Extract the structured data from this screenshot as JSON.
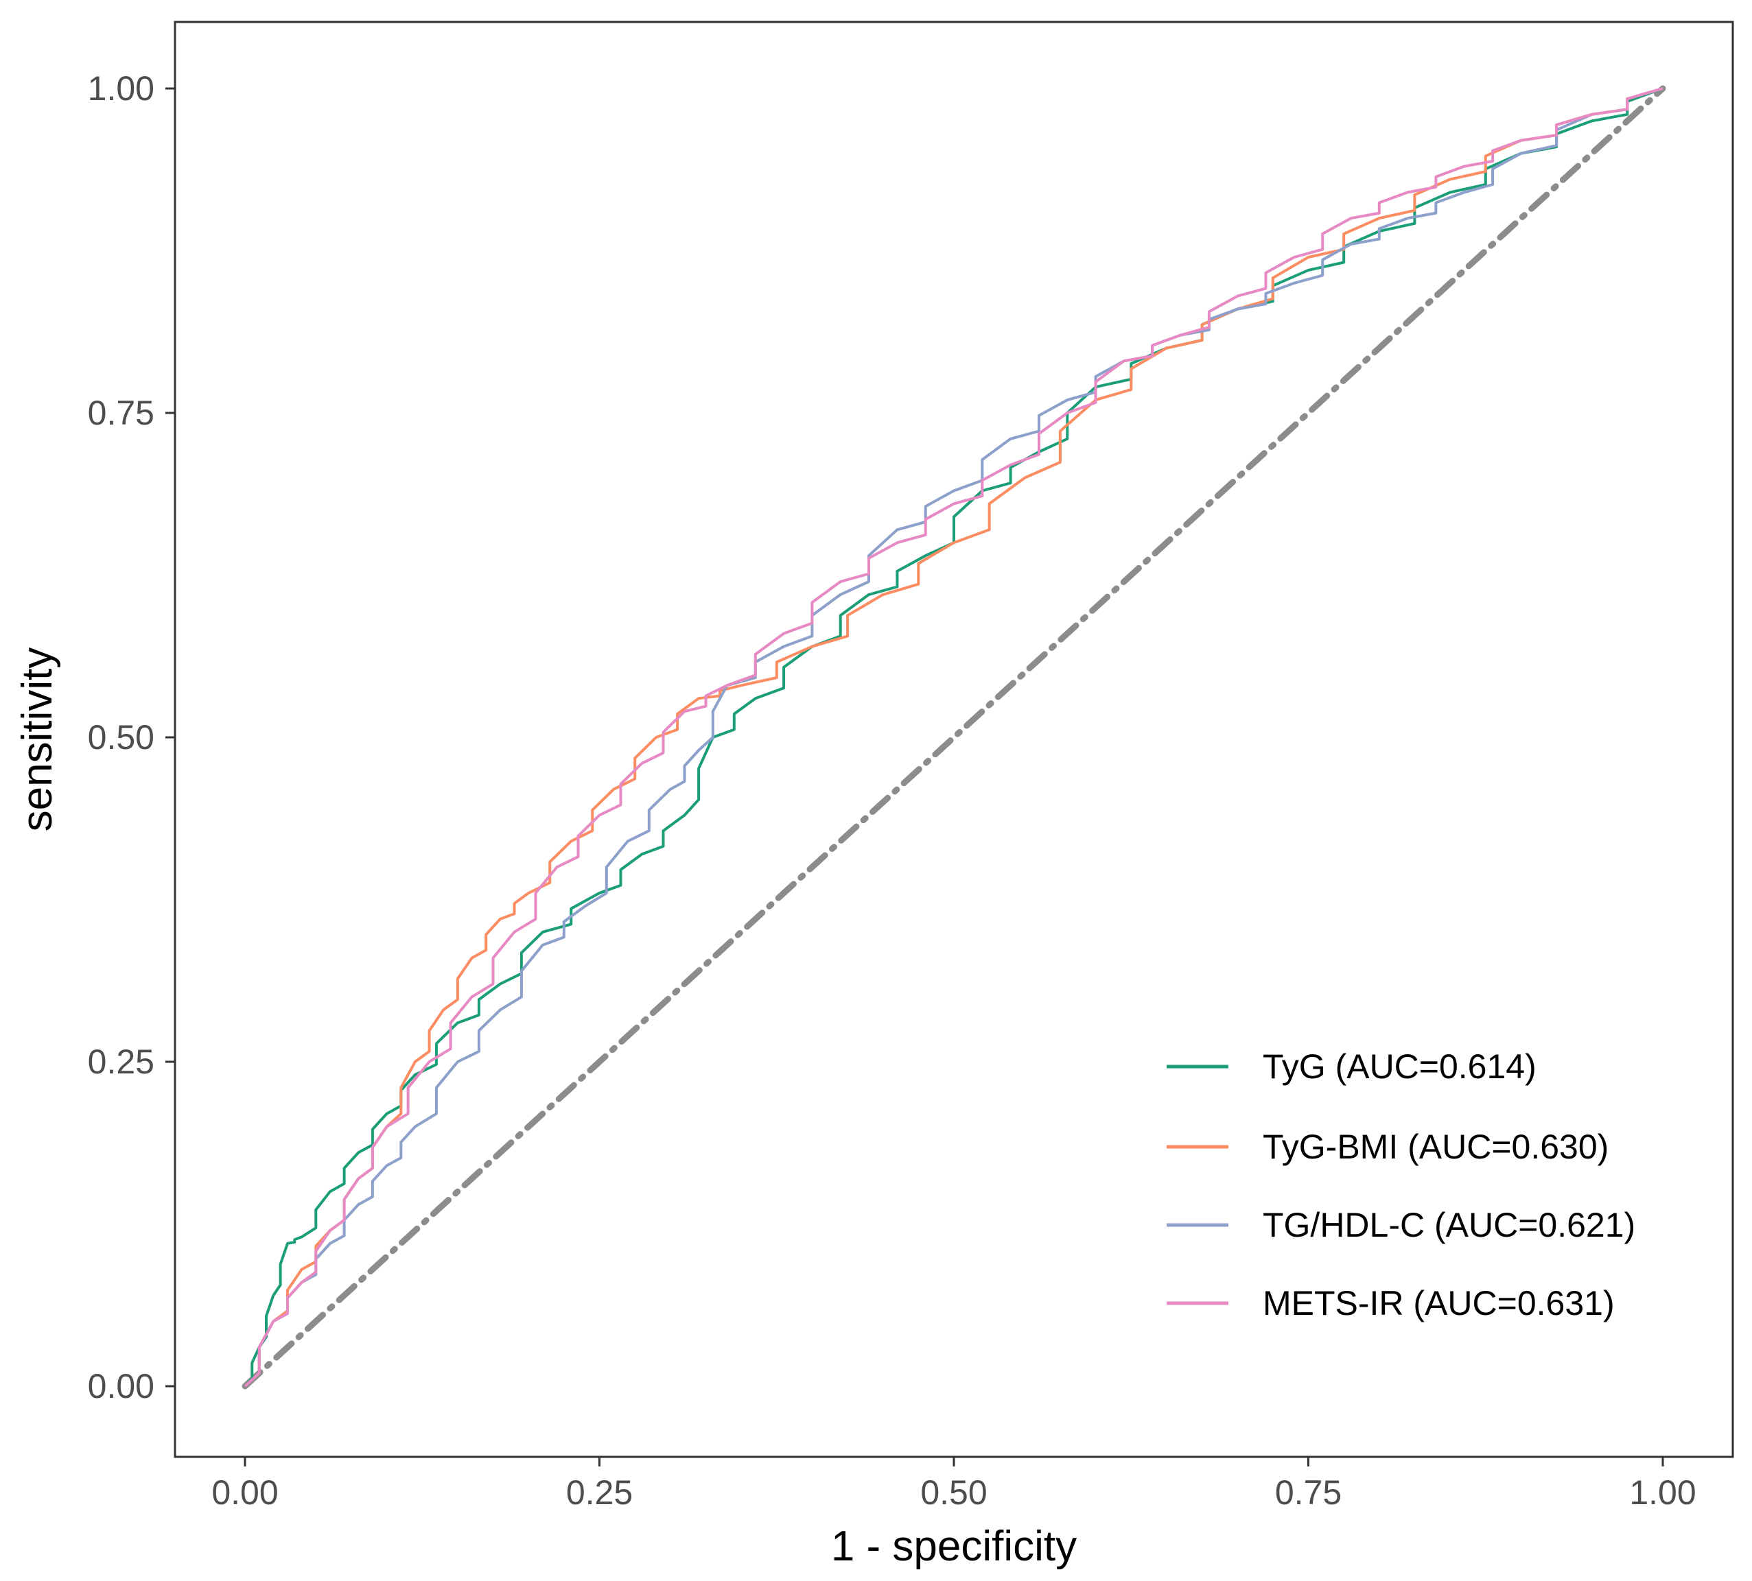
{
  "chart_data": {
    "type": "line",
    "title": "",
    "xlabel": "1 - specificity",
    "ylabel": "sensitivity",
    "xlim": [
      0,
      1
    ],
    "ylim": [
      0,
      1
    ],
    "x_ticks": [
      "0.00",
      "0.25",
      "0.50",
      "0.75",
      "1.00"
    ],
    "y_ticks": [
      "0.00",
      "0.25",
      "0.50",
      "0.75",
      "1.00"
    ],
    "grid": false,
    "legend_position": "bottom-right",
    "reference_line": {
      "x": [
        0,
        1
      ],
      "y": [
        0,
        1
      ],
      "style": "dot-dash",
      "color": "#8c8c8c"
    },
    "series": [
      {
        "name": "TyG (AUC=0.614)",
        "color": "#1b9e77",
        "x": [
          0,
          0.01,
          0.02,
          0.03,
          0.04,
          0.06,
          0.08,
          0.1,
          0.12,
          0.15,
          0.18,
          0.21,
          0.25,
          0.28,
          0.31,
          0.33,
          0.36,
          0.4,
          0.44,
          0.48,
          0.52,
          0.56,
          0.6,
          0.65,
          0.7,
          0.75,
          0.8,
          0.85,
          0.9,
          0.95,
          1.0
        ],
        "y": [
          0,
          0.03,
          0.07,
          0.11,
          0.115,
          0.15,
          0.18,
          0.21,
          0.24,
          0.28,
          0.31,
          0.35,
          0.38,
          0.41,
          0.44,
          0.5,
          0.53,
          0.57,
          0.61,
          0.64,
          0.69,
          0.72,
          0.77,
          0.8,
          0.83,
          0.86,
          0.89,
          0.92,
          0.95,
          0.975,
          1.0
        ]
      },
      {
        "name": "TyG-BMI (AUC=0.630)",
        "color": "#fc8d62",
        "x": [
          0,
          0.02,
          0.04,
          0.06,
          0.08,
          0.1,
          0.12,
          0.14,
          0.16,
          0.18,
          0.2,
          0.23,
          0.26,
          0.29,
          0.32,
          0.35,
          0.4,
          0.45,
          0.5,
          0.55,
          0.6,
          0.65,
          0.7,
          0.75,
          0.8,
          0.85,
          0.9,
          0.95,
          1.0
        ],
        "y": [
          0,
          0.05,
          0.09,
          0.12,
          0.16,
          0.2,
          0.25,
          0.29,
          0.33,
          0.36,
          0.38,
          0.42,
          0.46,
          0.5,
          0.53,
          0.54,
          0.57,
          0.61,
          0.65,
          0.7,
          0.76,
          0.8,
          0.83,
          0.87,
          0.9,
          0.93,
          0.96,
          0.98,
          1.0
        ]
      },
      {
        "name": "TG/HDL-C (AUC=0.621)",
        "color": "#8da0cb",
        "x": [
          0,
          0.02,
          0.04,
          0.06,
          0.08,
          0.1,
          0.12,
          0.15,
          0.18,
          0.21,
          0.24,
          0.27,
          0.3,
          0.32,
          0.34,
          0.38,
          0.42,
          0.46,
          0.5,
          0.54,
          0.58,
          0.62,
          0.66,
          0.7,
          0.74,
          0.78,
          0.82,
          0.86,
          0.9,
          0.95,
          1.0
        ],
        "y": [
          0,
          0.05,
          0.08,
          0.11,
          0.14,
          0.17,
          0.2,
          0.25,
          0.29,
          0.34,
          0.37,
          0.42,
          0.46,
          0.49,
          0.54,
          0.57,
          0.61,
          0.66,
          0.69,
          0.73,
          0.76,
          0.79,
          0.81,
          0.83,
          0.85,
          0.88,
          0.9,
          0.92,
          0.95,
          0.98,
          1.0
        ]
      },
      {
        "name": "METS-IR (AUC=0.631)",
        "color": "#e78ac3",
        "x": [
          0,
          0.02,
          0.04,
          0.06,
          0.08,
          0.1,
          0.13,
          0.16,
          0.19,
          0.22,
          0.25,
          0.28,
          0.31,
          0.34,
          0.38,
          0.42,
          0.46,
          0.5,
          0.54,
          0.58,
          0.62,
          0.66,
          0.7,
          0.74,
          0.78,
          0.82,
          0.86,
          0.9,
          0.95,
          1.0
        ],
        "y": [
          0,
          0.05,
          0.08,
          0.12,
          0.16,
          0.2,
          0.25,
          0.3,
          0.35,
          0.4,
          0.44,
          0.48,
          0.52,
          0.54,
          0.58,
          0.62,
          0.65,
          0.68,
          0.71,
          0.75,
          0.79,
          0.81,
          0.84,
          0.87,
          0.9,
          0.92,
          0.94,
          0.96,
          0.98,
          1.0
        ]
      }
    ]
  }
}
